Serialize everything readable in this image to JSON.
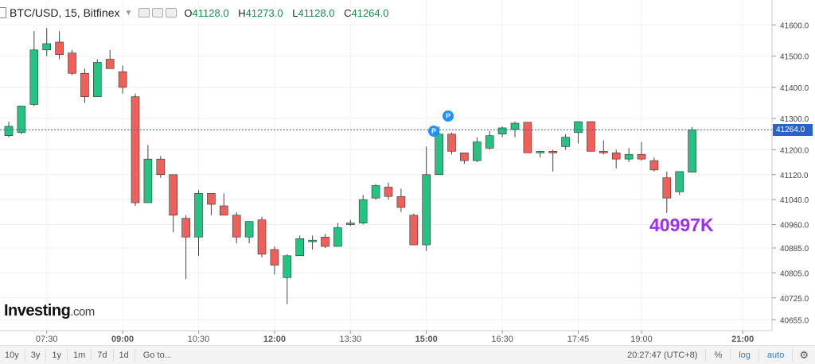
{
  "header": {
    "symbol": "BTC/USD, 15, Bitfinex",
    "ohlc": [
      {
        "key": "O",
        "value": "41128.0"
      },
      {
        "key": "H",
        "value": "41273.0"
      },
      {
        "key": "L",
        "value": "41128.0"
      },
      {
        "key": "C",
        "value": "41264.0"
      }
    ]
  },
  "logo": {
    "brand": "Investing",
    "suffix": ".com"
  },
  "annotation": "40997K",
  "current_price": "41264.0",
  "markers": [
    "P",
    "P"
  ],
  "toolbar": {
    "ranges": [
      "10y",
      "3y",
      "1y",
      "1m",
      "7d",
      "1d"
    ],
    "goto": "Go to...",
    "time": "20:27:47 (UTC+8)",
    "percent": "%",
    "log": "log",
    "auto": "auto"
  },
  "colors": {
    "up": "#26c281",
    "down": "#f0605a",
    "wick": "#444444",
    "price_line": "#2a62c9",
    "annotation": "#9b30f0"
  },
  "chart_data": {
    "type": "candlestick",
    "title": "BTC/USD, 15, Bitfinex",
    "ylim": [
      40620,
      41680
    ],
    "y_ticks": [
      41600,
      41500,
      41400,
      41300,
      41200,
      41120,
      41040,
      40960,
      40885,
      40805,
      40725,
      40655
    ],
    "y_tick_labels": [
      "41600.0",
      "41500.0",
      "41400.0",
      "41300.0",
      "41200.0",
      "41120.0",
      "41040.0",
      "40960.0",
      "40885.0",
      "40805.0",
      "40725.0",
      "40655.0"
    ],
    "x_ticks": [
      {
        "index": 3,
        "label": "07:30",
        "bold": false
      },
      {
        "index": 9,
        "label": "09:00",
        "bold": true
      },
      {
        "index": 15,
        "label": "10:30",
        "bold": false
      },
      {
        "index": 21,
        "label": "12:00",
        "bold": true
      },
      {
        "index": 27,
        "label": "13:30",
        "bold": false
      },
      {
        "index": 33,
        "label": "15:00",
        "bold": true
      },
      {
        "index": 39,
        "label": "16:30",
        "bold": false
      },
      {
        "index": 45,
        "label": "17:45",
        "bold": false
      },
      {
        "index": 50,
        "label": "19:00",
        "bold": false
      },
      {
        "index": 58,
        "label": "21:00",
        "bold": true
      }
    ],
    "candles": [
      {
        "o": 41245,
        "h": 41290,
        "l": 41240,
        "c": 41275
      },
      {
        "o": 41255,
        "h": 41340,
        "l": 41250,
        "c": 41340
      },
      {
        "o": 41345,
        "h": 41580,
        "l": 41340,
        "c": 41520
      },
      {
        "o": 41520,
        "h": 41590,
        "l": 41500,
        "c": 41540
      },
      {
        "o": 41545,
        "h": 41580,
        "l": 41490,
        "c": 41505
      },
      {
        "o": 41510,
        "h": 41520,
        "l": 41440,
        "c": 41445
      },
      {
        "o": 41445,
        "h": 41460,
        "l": 41350,
        "c": 41370
      },
      {
        "o": 41370,
        "h": 41490,
        "l": 41370,
        "c": 41480
      },
      {
        "o": 41490,
        "h": 41520,
        "l": 41470,
        "c": 41460
      },
      {
        "o": 41450,
        "h": 41470,
        "l": 41380,
        "c": 41400
      },
      {
        "o": 41370,
        "h": 41380,
        "l": 41020,
        "c": 41030
      },
      {
        "o": 41030,
        "h": 41215,
        "l": 41030,
        "c": 41170
      },
      {
        "o": 41170,
        "h": 41180,
        "l": 41110,
        "c": 41120
      },
      {
        "o": 41120,
        "h": 41120,
        "l": 40935,
        "c": 40990
      },
      {
        "o": 40980,
        "h": 40990,
        "l": 40785,
        "c": 40920
      },
      {
        "o": 40920,
        "h": 41070,
        "l": 40860,
        "c": 41060
      },
      {
        "o": 41060,
        "h": 41060,
        "l": 40990,
        "c": 41025
      },
      {
        "o": 41020,
        "h": 41060,
        "l": 41000,
        "c": 40990
      },
      {
        "o": 40990,
        "h": 41000,
        "l": 40900,
        "c": 40920
      },
      {
        "o": 40920,
        "h": 40970,
        "l": 40900,
        "c": 40970
      },
      {
        "o": 40975,
        "h": 40985,
        "l": 40855,
        "c": 40865
      },
      {
        "o": 40880,
        "h": 40890,
        "l": 40800,
        "c": 40830
      },
      {
        "o": 40790,
        "h": 40865,
        "l": 40705,
        "c": 40860
      },
      {
        "o": 40860,
        "h": 40925,
        "l": 40860,
        "c": 40915
      },
      {
        "o": 40905,
        "h": 40925,
        "l": 40880,
        "c": 40910
      },
      {
        "o": 40920,
        "h": 40930,
        "l": 40885,
        "c": 40890
      },
      {
        "o": 40890,
        "h": 40965,
        "l": 40890,
        "c": 40950
      },
      {
        "o": 40960,
        "h": 40975,
        "l": 40955,
        "c": 40965
      },
      {
        "o": 40965,
        "h": 41055,
        "l": 40960,
        "c": 41040
      },
      {
        "o": 41045,
        "h": 41090,
        "l": 41040,
        "c": 41085
      },
      {
        "o": 41080,
        "h": 41095,
        "l": 41040,
        "c": 41050
      },
      {
        "o": 41050,
        "h": 41075,
        "l": 41000,
        "c": 41015
      },
      {
        "o": 40990,
        "h": 40995,
        "l": 40895,
        "c": 40895
      },
      {
        "o": 40895,
        "h": 41210,
        "l": 40875,
        "c": 41120
      },
      {
        "o": 41120,
        "h": 41275,
        "l": 41120,
        "c": 41250
      },
      {
        "o": 41250,
        "h": 41255,
        "l": 41185,
        "c": 41195
      },
      {
        "o": 41190,
        "h": 41190,
        "l": 41155,
        "c": 41165
      },
      {
        "o": 41165,
        "h": 41240,
        "l": 41160,
        "c": 41225
      },
      {
        "o": 41205,
        "h": 41260,
        "l": 41200,
        "c": 41245
      },
      {
        "o": 41250,
        "h": 41275,
        "l": 41240,
        "c": 41270
      },
      {
        "o": 41265,
        "h": 41290,
        "l": 41240,
        "c": 41285
      },
      {
        "o": 41288,
        "h": 41288,
        "l": 41190,
        "c": 41190
      },
      {
        "o": 41190,
        "h": 41195,
        "l": 41175,
        "c": 41195
      },
      {
        "o": 41195,
        "h": 41200,
        "l": 41130,
        "c": 41190
      },
      {
        "o": 41210,
        "h": 41250,
        "l": 41200,
        "c": 41240
      },
      {
        "o": 41255,
        "h": 41290,
        "l": 41220,
        "c": 41290
      },
      {
        "o": 41290,
        "h": 41290,
        "l": 41195,
        "c": 41195
      },
      {
        "o": 41195,
        "h": 41230,
        "l": 41185,
        "c": 41190
      },
      {
        "o": 41190,
        "h": 41200,
        "l": 41140,
        "c": 41170
      },
      {
        "o": 41170,
        "h": 41205,
        "l": 41160,
        "c": 41185
      },
      {
        "o": 41185,
        "h": 41225,
        "l": 41165,
        "c": 41170
      },
      {
        "o": 41165,
        "h": 41175,
        "l": 41130,
        "c": 41135
      },
      {
        "o": 41110,
        "h": 41130,
        "l": 40997,
        "c": 41045
      },
      {
        "o": 41065,
        "h": 41130,
        "l": 41055,
        "c": 41130
      },
      {
        "o": 41128,
        "h": 41273,
        "l": 41128,
        "c": 41264
      }
    ]
  }
}
